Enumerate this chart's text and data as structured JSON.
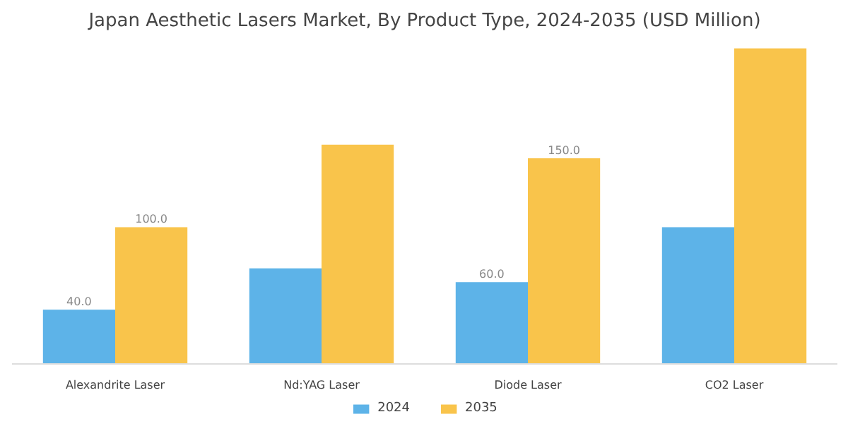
{
  "chart_data": {
    "type": "bar",
    "title": "Japan Aesthetic Lasers Market, By Product Type, 2024-2035 (USD Million)",
    "categories": [
      "Alexandrite Laser",
      "Nd:YAG Laser",
      "Diode Laser",
      "CO2 Laser"
    ],
    "series": [
      {
        "name": "2024",
        "color": "#5db3e8",
        "values": [
          40,
          70,
          60,
          100
        ],
        "value_labels": [
          "40.0",
          null,
          "60.0",
          null
        ]
      },
      {
        "name": "2035",
        "color": "#f9c44b",
        "values": [
          100,
          160,
          150,
          230
        ],
        "value_labels": [
          "100.0",
          null,
          "150.0",
          null
        ]
      }
    ],
    "legend": "bottom"
  }
}
